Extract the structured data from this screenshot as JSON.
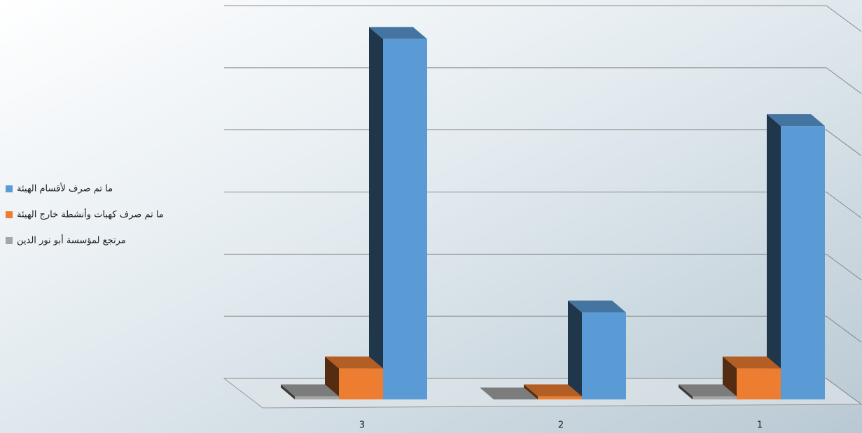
{
  "chart_data": {
    "type": "bar3d",
    "categories": [
      "3",
      "2",
      "1"
    ],
    "series": [
      {
        "name": "ما تم صرف لأقسام الهيئة",
        "color": "#5b9bd5",
        "values": [
          5.8,
          1.4,
          4.4
        ]
      },
      {
        "name": "ما تم صرف كهبات وأنشطة خارج الهيئة",
        "color": "#ed7d31",
        "values": [
          0.5,
          0.05,
          0.5
        ]
      },
      {
        "name": "مرتجع لمؤسسة أبو نور الدين",
        "color": "#a5a5a5",
        "values": [
          0.05,
          0,
          0.05
        ]
      }
    ],
    "ylim": [
      0,
      6
    ],
    "yticks": [
      0,
      1,
      2,
      3,
      4,
      5,
      6
    ],
    "grid": true
  }
}
